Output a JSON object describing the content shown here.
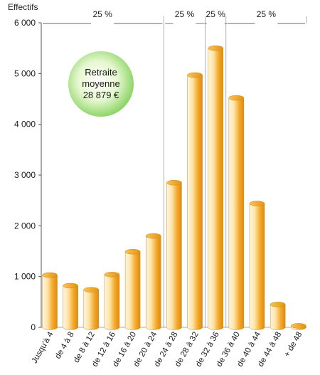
{
  "chart_data": {
    "type": "bar",
    "title": "",
    "ylabel": "Effectifs",
    "xlabel": "",
    "ylim": [
      0,
      6000
    ],
    "yticks": [
      0,
      1000,
      2000,
      3000,
      4000,
      5000,
      6000
    ],
    "ytick_labels": [
      "0",
      "1 000",
      "2 000",
      "3 000",
      "4 000",
      "5 000",
      "6 000"
    ],
    "grid": false,
    "categories": [
      "Jusqu'à 4",
      "de 4 à 8",
      "de 8 à 12",
      "de 12 à 16",
      "de 16 à 20",
      "de 20 à 24",
      "de 24 à 28",
      "de 28 à 32",
      "de 32 à 36",
      "de 36 à 40",
      "de 40 à 44",
      "de 44 à 48",
      "+ de 48"
    ],
    "values": [
      1030,
      820,
      740,
      1040,
      1490,
      1800,
      2850,
      4970,
      5500,
      4520,
      2440,
      450,
      30
    ],
    "bar_color": "#f0a020",
    "share_groups": [
      {
        "label": "25 %",
        "from": 0,
        "to": 5
      },
      {
        "label": "25 %",
        "from": 6,
        "to": 7
      },
      {
        "label": "25 %",
        "from": 8,
        "to": 8
      },
      {
        "label": "25 %",
        "from": 9,
        "to": 12
      }
    ],
    "annotation": {
      "lines": [
        "Retraite",
        "moyenne",
        "28 879 €"
      ],
      "color": "#8fd66a"
    }
  }
}
